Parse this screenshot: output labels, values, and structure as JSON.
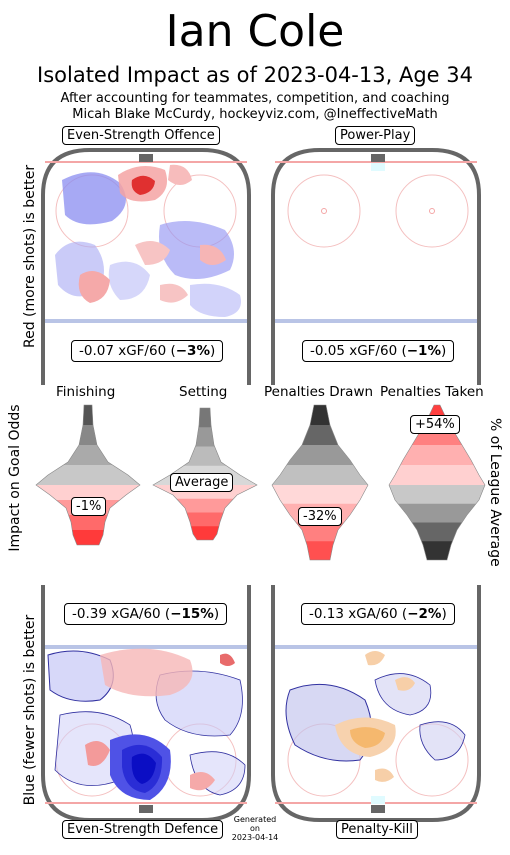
{
  "title": "Ian Cole",
  "subtitle": "Isolated Impact as of 2023-04-13, Age 34",
  "subline1": "After accounting for teammates, competition, and coaching",
  "subline2": "Micah Blake McCurdy, hockeyviz.com, @IneffectiveMath",
  "ylabel_top": "Red (more shots) is better",
  "ylabel_middle": "Impact on Goal Odds",
  "ylabel_bottom": "Blue (fewer shots) is better",
  "ylabel_right": "% of League Average",
  "generated": [
    "Generated",
    "on",
    "2023-04-14"
  ],
  "panels": {
    "es_offence": {
      "label": "Even-Strength Offence",
      "stat_main": "-0.07 xGF/60 (",
      "stat_pct": "−3%",
      "stat_close": ")"
    },
    "power_play": {
      "label": "Power-Play",
      "stat_main": "-0.05 xGF/60 (",
      "stat_pct": "−1%",
      "stat_close": ")"
    },
    "es_defence": {
      "label": "Even-Strength Defence",
      "stat_main": "-0.39 xGA/60 (",
      "stat_pct": "−15%",
      "stat_close": ")"
    },
    "penalty_kill": {
      "label": "Penalty-Kill",
      "stat_main": "-0.13 xGA/60 (",
      "stat_pct": "−2%",
      "stat_close": ")"
    }
  },
  "chart_data": {
    "type": "violin",
    "metrics": [
      {
        "name": "Finishing",
        "value_label": "-1%",
        "value": -1,
        "good_color": "#ff0000",
        "orientation": "higher-is-better"
      },
      {
        "name": "Setting",
        "value_label": "Average",
        "value": 0,
        "good_color": "#ff0000",
        "orientation": "higher-is-better"
      },
      {
        "name": "Penalties Drawn",
        "value_label": "-32%",
        "value": -32,
        "good_color": "#ff0000",
        "orientation": "higher-is-better"
      },
      {
        "name": "Penalties Taken",
        "value_label": "+54%",
        "value": 54,
        "good_color": "#000000",
        "orientation": "lower-is-better"
      }
    ]
  },
  "colors": {
    "rink_border": "#666666",
    "red_line": "#f4a6a6",
    "blue_line": "#b9c4e6",
    "red": "#ff0000",
    "blue": "#0000cc"
  }
}
